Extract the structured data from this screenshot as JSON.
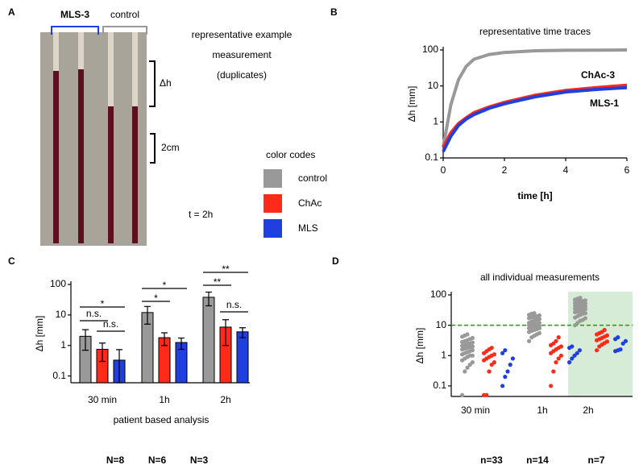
{
  "chart_data": [
    {
      "type": "image",
      "label": "A",
      "title_lines": [
        "representative example",
        "measurement",
        "(duplicates)"
      ],
      "group_labels": [
        {
          "text": "MLS-3",
          "color": "#1f3fe0"
        },
        {
          "text": "control",
          "color": "#999999"
        }
      ],
      "annotations": [
        "Δh",
        "2cm",
        "t = 2h"
      ],
      "legend_title": "color codes",
      "legend": [
        {
          "name": "control",
          "color": "#999999"
        },
        {
          "name": "ChAc",
          "color": "#ff2a1a"
        },
        {
          "name": "MLS",
          "color": "#1f3fe0"
        }
      ]
    },
    {
      "type": "line",
      "label": "B",
      "title": "representative time traces",
      "xlabel": "time [h]",
      "ylabel": "Δh [mm]",
      "x": [
        0,
        0.25,
        0.5,
        0.75,
        1,
        1.5,
        2,
        3,
        4,
        5,
        6
      ],
      "series": [
        {
          "name": "control",
          "color": "#999999",
          "values": [
            0.2,
            3,
            15,
            35,
            55,
            75,
            85,
            95,
            98,
            99,
            100
          ]
        },
        {
          "name": "ChAc-3",
          "color": "#ff2a1a",
          "values": [
            0.2,
            0.5,
            0.9,
            1.3,
            1.8,
            2.6,
            3.5,
            5.5,
            7.5,
            9,
            10.5
          ]
        },
        {
          "name": "MLS-1",
          "color": "#1f3fe0",
          "values": [
            0.15,
            0.4,
            0.8,
            1.2,
            1.6,
            2.4,
            3.2,
            5,
            6.8,
            8,
            9
          ]
        }
      ],
      "xlim": [
        0,
        6
      ],
      "xticks": [
        0,
        2,
        4,
        6
      ],
      "ylim": [
        0.1,
        100
      ],
      "yticks": [
        0.1,
        1,
        10,
        100
      ],
      "log_y": true
    },
    {
      "type": "bar",
      "label": "C",
      "xlabel": "patient based analysis",
      "ylabel": "Δh [mm]",
      "categories": [
        "30 min",
        "1h",
        "2h"
      ],
      "series": [
        {
          "name": "N=8",
          "color": "#999999",
          "values": [
            2,
            12,
            38
          ],
          "errors": [
            1.3,
            7,
            18
          ]
        },
        {
          "name": "N=6",
          "color": "#ff2a1a",
          "values": [
            0.75,
            1.8,
            4
          ],
          "errors": [
            0.45,
            0.8,
            3
          ]
        },
        {
          "name": "N=3",
          "color": "#1f3fe0",
          "values": [
            0.33,
            1.25,
            2.8
          ],
          "errors": [
            0.4,
            0.5,
            1
          ]
        }
      ],
      "annotations": [
        "*",
        "n.s.",
        "n.s.",
        "*",
        "*",
        "**",
        "**",
        "n.s."
      ],
      "ylim": [
        0.06,
        100
      ],
      "yticks": [
        0.1,
        1,
        10,
        100
      ],
      "log_y": true
    },
    {
      "type": "strip",
      "label": "D",
      "title": "all individual measurements",
      "ylabel": "Δh [mm]",
      "categories": [
        "30 min",
        "1h",
        "2h"
      ],
      "series": [
        {
          "name": "n=33",
          "color": "#999999",
          "values": [
            [
              0.05,
              0.3,
              0.4,
              0.5,
              0.6,
              0.7,
              0.8,
              0.9,
              1,
              1,
              1.1,
              1.2,
              1.3,
              1.4,
              1.5,
              1.6,
              1.7,
              1.8,
              1.9,
              2,
              2.1,
              2.2,
              2.4,
              2.5,
              2.7,
              2.8,
              3,
              3.2,
              3.5,
              3.8,
              4.2,
              4.6,
              5
            ],
            [
              3,
              4,
              4.5,
              5,
              5.5,
              6,
              6.5,
              7,
              7.5,
              8,
              8,
              8.5,
              9,
              9,
              9.5,
              10,
              10,
              11,
              11,
              12,
              12,
              13,
              14,
              15,
              16,
              17,
              18,
              19,
              20,
              21,
              22,
              24,
              25
            ],
            [
              10,
              12,
              14,
              15,
              17,
              18,
              20,
              22,
              24,
              25,
              27,
              28,
              30,
              32,
              34,
              35,
              37,
              38,
              40,
              42,
              44,
              45,
              48,
              50,
              52,
              55,
              58,
              60,
              63,
              66,
              70,
              75,
              80
            ]
          ]
        },
        {
          "name": "n=14",
          "color": "#ff2a1a",
          "values": [
            [
              0.05,
              0.05,
              0.3,
              0.5,
              0.6,
              0.7,
              0.8,
              0.9,
              1,
              1.1,
              1.2,
              1.4,
              1.6,
              1.8
            ],
            [
              0.1,
              0.3,
              0.6,
              0.8,
              1,
              1.2,
              1.4,
              1.6,
              1.8,
              2,
              2.2,
              2.5,
              3,
              4
            ],
            [
              1.5,
              2,
              2.3,
              2.6,
              2.9,
              3.2,
              3.5,
              3.8,
              4.2,
              4.6,
              5,
              5.5,
              6,
              7
            ]
          ]
        },
        {
          "name": "n=7",
          "color": "#1f3fe0",
          "values": [
            [
              0.1,
              0.2,
              0.3,
              0.5,
              0.8,
              1.2,
              1.5
            ],
            [
              0.6,
              0.8,
              1,
              1.2,
              1.5,
              1.8,
              2
            ],
            [
              1.4,
              1.5,
              1.6,
              2.5,
              3,
              3.5,
              4
            ]
          ]
        }
      ],
      "threshold": 10,
      "threshold_color": "#1a9a1a",
      "highlight_category": 2,
      "highlight_color": "#d6ecd6",
      "ylim": [
        0.045,
        100
      ],
      "yticks": [
        0.1,
        1,
        10,
        100
      ],
      "log_y": true
    }
  ]
}
